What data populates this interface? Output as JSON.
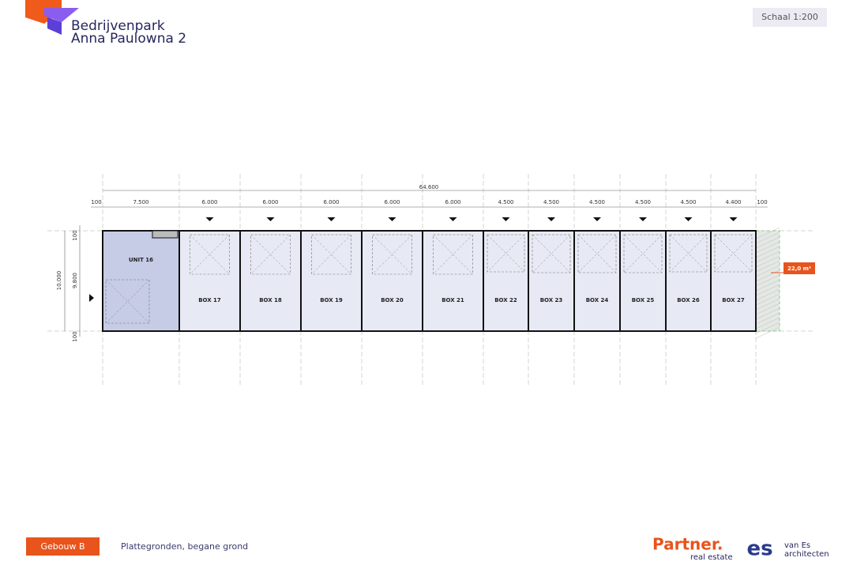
{
  "header": {
    "title_line1": "Bedrijvenpark",
    "title_line2": "Anna Paulowna 2",
    "scale": "Schaal 1:200"
  },
  "plan": {
    "total_dimension": "64.600",
    "dimensions": [
      "100",
      "7.500",
      "6.000",
      "6.000",
      "6.000",
      "6.000",
      "6.000",
      "4.500",
      "4.500",
      "4.500",
      "4.500",
      "4.500",
      "4.400",
      "100"
    ],
    "vertical_dimensions": {
      "overall": "10.000",
      "inner": "9.800",
      "top": "100",
      "bottom": "100"
    },
    "units": [
      "UNIT 16",
      "BOX 17",
      "BOX 18",
      "BOX 19",
      "BOX 20",
      "BOX 21",
      "BOX 22",
      "BOX 23",
      "BOX 24",
      "BOX 25",
      "BOX 26",
      "BOX 27"
    ],
    "area_label": "22,0 m²"
  },
  "footer": {
    "building": "Gebouw B",
    "description": "Plattegronden, begane grond",
    "partner_name": "Partner.",
    "partner_sub": "real estate",
    "architect_logo": "es",
    "architect_name": "van Es",
    "architect_sub": "architecten"
  }
}
